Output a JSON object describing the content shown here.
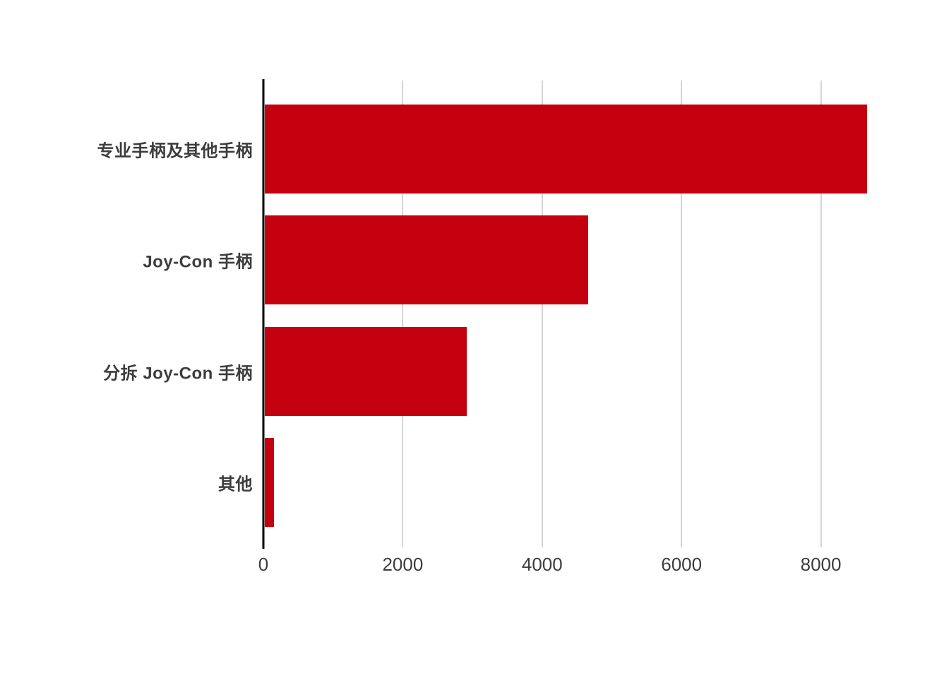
{
  "page": {
    "background": "#ffffff"
  },
  "chart_data": {
    "type": "bar",
    "orientation": "horizontal",
    "title": "",
    "xlabel": "",
    "ylabel": "",
    "categories": [
      "专业手柄及其他手柄",
      "Joy-Con 手柄",
      "分拆 Joy-Con 手柄",
      "其他"
    ],
    "values": [
      8650,
      4650,
      2900,
      135
    ],
    "x_ticks": [
      0,
      2000,
      4000,
      6000,
      8000
    ],
    "xlim": [
      0,
      9200
    ],
    "grid": true,
    "legend": false,
    "colors": {
      "bar": "#c4000e",
      "axis_line": "#000000",
      "gridline": "#d4d4d4",
      "text": "#3d3d3d"
    }
  }
}
